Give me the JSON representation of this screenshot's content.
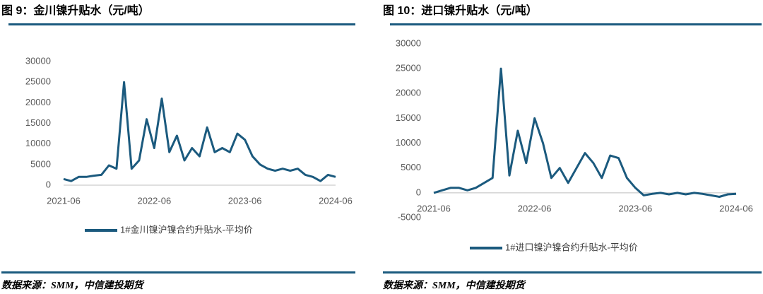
{
  "chart_data": [
    {
      "type": "line",
      "title": "图 9：金川镍升贴水（元/吨）",
      "source": "数据来源：SMM，中信建投期货",
      "x": [
        "2021-06",
        "2021-07",
        "2021-08",
        "2021-09",
        "2021-10",
        "2021-11",
        "2021-12",
        "2022-01",
        "2022-02",
        "2022-03",
        "2022-04",
        "2022-05",
        "2022-06",
        "2022-07",
        "2022-08",
        "2022-09",
        "2022-10",
        "2022-11",
        "2022-12",
        "2023-01",
        "2023-02",
        "2023-03",
        "2023-04",
        "2023-05",
        "2023-06",
        "2023-07",
        "2023-08",
        "2023-09",
        "2023-10",
        "2023-11",
        "2023-12",
        "2024-01",
        "2024-02",
        "2024-03",
        "2024-04",
        "2024-05",
        "2024-06"
      ],
      "series": [
        {
          "name": "1#金川镍沪镍合约升贴水-平均价",
          "color": "#1b5a7e",
          "values": [
            1500,
            1000,
            2000,
            2000,
            2300,
            2500,
            4800,
            4000,
            25000,
            4000,
            6000,
            16000,
            9000,
            21000,
            8000,
            12000,
            6000,
            9000,
            7000,
            14000,
            8000,
            9000,
            8000,
            12500,
            11000,
            7000,
            5000,
            4000,
            3500,
            4000,
            3500,
            4000,
            2500,
            2000,
            1000,
            2500,
            2000
          ]
        }
      ],
      "ylim": [
        0,
        30000
      ],
      "yticks": [
        0,
        5000,
        10000,
        15000,
        20000,
        25000,
        30000
      ]
    },
    {
      "type": "line",
      "title": "图 10：进口镍升贴水（元/吨）",
      "source": "数据来源：SMM，中信建投期货",
      "x": [
        "2021-06",
        "2021-07",
        "2021-08",
        "2021-09",
        "2021-10",
        "2021-11",
        "2021-12",
        "2022-01",
        "2022-02",
        "2022-03",
        "2022-04",
        "2022-05",
        "2022-06",
        "2022-07",
        "2022-08",
        "2022-09",
        "2022-10",
        "2022-11",
        "2022-12",
        "2023-01",
        "2023-02",
        "2023-03",
        "2023-04",
        "2023-05",
        "2023-06",
        "2023-07",
        "2023-08",
        "2023-09",
        "2023-10",
        "2023-11",
        "2023-12",
        "2024-01",
        "2024-02",
        "2024-03",
        "2024-04",
        "2024-05",
        "2024-06"
      ],
      "series": [
        {
          "name": "1#进口镍沪镍合约升贴水-平均价",
          "color": "#1b5a7e",
          "values": [
            0,
            500,
            1000,
            1000,
            500,
            1000,
            2000,
            3000,
            25000,
            3500,
            12500,
            6000,
            15000,
            10000,
            3000,
            5000,
            2000,
            5000,
            8000,
            6000,
            3000,
            7500,
            7000,
            3000,
            1000,
            -500,
            -200,
            0,
            -300,
            0,
            -300,
            0,
            -200,
            -500,
            -800,
            -300,
            -200
          ]
        }
      ],
      "ylim": [
        -5000,
        30000
      ],
      "yticks": [
        -5000,
        0,
        5000,
        10000,
        15000,
        20000,
        25000,
        30000
      ]
    }
  ]
}
